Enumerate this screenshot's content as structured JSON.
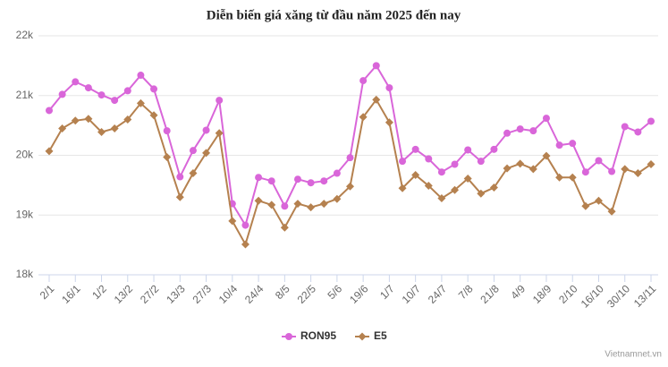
{
  "chart_data": {
    "type": "line",
    "title": "Diễn biến giá xăng từ đầu năm 2025 đến nay",
    "categories": [
      "2/1",
      null,
      "16/1",
      null,
      "1/2",
      null,
      "13/2",
      null,
      "27/2",
      null,
      "13/3",
      null,
      "27/3",
      null,
      "10/4",
      null,
      "24/4",
      null,
      "8/5",
      null,
      "22/5",
      null,
      "5/6",
      null,
      "19/6",
      null,
      "1/7",
      null,
      "10/7",
      null,
      "24/7",
      null,
      "7/8",
      null,
      "21/8",
      null,
      "4/9",
      null,
      "18/9",
      null,
      "2/10",
      null,
      "16/10",
      null,
      "30/10",
      null,
      "13/11"
    ],
    "series": [
      {
        "name": "RON95",
        "color": "#d966d9",
        "values": [
          20750,
          21020,
          21230,
          21130,
          21010,
          20920,
          21080,
          21340,
          21110,
          20410,
          19640,
          20080,
          20420,
          20920,
          19190,
          18830,
          19630,
          19570,
          19150,
          19600,
          19540,
          19570,
          19700,
          19960,
          21250,
          21500,
          21130,
          19900,
          20100,
          19940,
          19720,
          19850,
          20090,
          19900,
          20100,
          20370,
          20440,
          20410,
          20620,
          20170,
          20200,
          19720,
          19910,
          19730,
          20480,
          20390,
          20570
        ]
      },
      {
        "name": "E5",
        "color": "#b5814f",
        "values": [
          20070,
          20450,
          20580,
          20610,
          20390,
          20450,
          20600,
          20870,
          20670,
          19970,
          19300,
          19700,
          20040,
          20370,
          18900,
          18510,
          19240,
          19170,
          18790,
          19190,
          19130,
          19190,
          19270,
          19480,
          20640,
          20930,
          20550,
          19450,
          19670,
          19490,
          19280,
          19420,
          19610,
          19360,
          19460,
          19780,
          19860,
          19770,
          19990,
          19630,
          19630,
          19150,
          19240,
          19060,
          19770,
          19700,
          19850
        ]
      }
    ],
    "ylim": [
      18000,
      22000
    ],
    "yticks": [
      {
        "value": 18000,
        "label": "18k"
      },
      {
        "value": 19000,
        "label": "19k"
      },
      {
        "value": 20000,
        "label": "20k"
      },
      {
        "value": 21000,
        "label": "21k"
      },
      {
        "value": 22000,
        "label": "22k"
      }
    ],
    "grid": true,
    "legend": "bottom",
    "watermark": "Vietnamnet.vn"
  }
}
